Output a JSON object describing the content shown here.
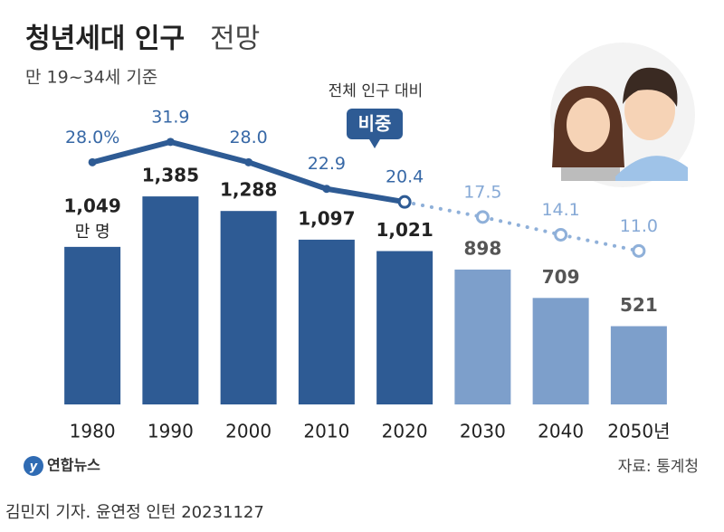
{
  "chart_data": {
    "type": "bar_line",
    "title": "청년세대 인구",
    "title_light": "전망",
    "subtitle": "만 19~34세 기준",
    "categories": [
      "1980",
      "1990",
      "2000",
      "2010",
      "2020",
      "2030",
      "2040",
      "2050년"
    ],
    "ylim": [
      0,
      1500
    ],
    "y2lim": [
      -20,
      35
    ],
    "series": [
      {
        "type": "bar",
        "unit": "만 명",
        "values": [
          1049,
          1385,
          1288,
          1097,
          1021,
          898,
          709,
          521
        ],
        "value_labels": [
          "1,049",
          "1,385",
          "1,288",
          "1,097",
          "1,021",
          "898",
          "709",
          "521"
        ],
        "colors": [
          "#2e5b94",
          "#2e5b94",
          "#2e5b94",
          "#2e5b94",
          "#2e5b94",
          "#7d9fcb",
          "#7d9fcb",
          "#7d9fcb"
        ]
      },
      {
        "type": "line",
        "axis": "y2",
        "name": "비중",
        "note": "전체 인구 대비",
        "values": [
          28.0,
          31.9,
          28.0,
          22.9,
          20.4,
          17.5,
          14.1,
          11.0
        ],
        "value_labels": [
          "28.0%",
          "31.9",
          "28.0",
          "22.9",
          "20.4",
          "17.5",
          "14.1",
          "11.0"
        ],
        "colors": [
          "#2e5b94",
          "#2e5b94",
          "#2e5b94",
          "#2e5b94",
          "#2e5b94",
          "#8fb0d9",
          "#8fb0d9",
          "#8fb0d9"
        ]
      }
    ],
    "logo": "연합뉴스",
    "source": "자료: 통계청",
    "credit": "김민지 기자. 윤연정 인턴  20231127"
  }
}
